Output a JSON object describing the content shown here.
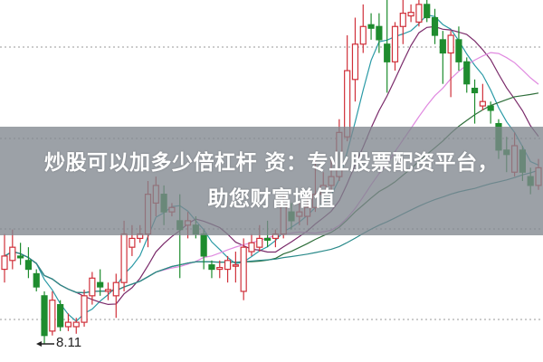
{
  "banner": {
    "line1": "炒股可以加多少倍杠杆 资：专业股票配资平台，",
    "line2": "助您财富增值"
  },
  "chart_data": {
    "type": "candlestick",
    "title": "",
    "xlabel": "",
    "ylabel": "",
    "ylim": [
      7.9,
      12.0
    ],
    "grid": "horizontal dotted",
    "annotations": [
      {
        "text": "8.11",
        "target": "lowest low"
      }
    ],
    "colors": {
      "up": "#d0303a",
      "down": "#1e8c2e",
      "ma_lines": [
        "#2a9aa6",
        "#7a2a6a",
        "#e08ae0",
        "#2e6e3a",
        "#2a8a8a"
      ]
    },
    "candles": [
      [
        8.95,
        9.1,
        9.35,
        8.8
      ],
      [
        9.05,
        9.2,
        9.4,
        8.95
      ],
      [
        9.1,
        9.08,
        9.25,
        9.0
      ],
      [
        9.05,
        8.95,
        9.2,
        8.85
      ],
      [
        8.9,
        8.75,
        8.95,
        8.7
      ],
      [
        8.65,
        8.2,
        8.7,
        8.11
      ],
      [
        8.25,
        8.6,
        8.7,
        8.2
      ],
      [
        8.55,
        8.3,
        8.6,
        8.25
      ],
      [
        8.3,
        8.35,
        8.45,
        8.25
      ],
      [
        8.3,
        8.35,
        8.4,
        8.22
      ],
      [
        8.35,
        8.65,
        8.72,
        8.3
      ],
      [
        8.65,
        8.85,
        8.92,
        8.55
      ],
      [
        8.8,
        8.75,
        8.95,
        8.65
      ],
      [
        8.7,
        8.72,
        8.8,
        8.6
      ],
      [
        8.65,
        8.8,
        8.9,
        8.4
      ],
      [
        8.8,
        9.35,
        9.5,
        8.7
      ],
      [
        9.2,
        9.3,
        9.45,
        9.1
      ],
      [
        9.3,
        9.35,
        9.45,
        9.25
      ],
      [
        9.35,
        9.8,
        9.95,
        9.2
      ],
      [
        9.7,
        9.9,
        10.0,
        9.55
      ],
      [
        9.8,
        9.6,
        9.9,
        9.45
      ],
      [
        9.6,
        9.65,
        9.7,
        9.55
      ],
      [
        9.5,
        9.4,
        9.8,
        8.85
      ],
      [
        9.45,
        9.5,
        9.6,
        9.3
      ],
      [
        9.45,
        9.35,
        9.55,
        9.3
      ],
      [
        9.35,
        9.1,
        9.4,
        8.95
      ],
      [
        9.0,
        8.95,
        9.05,
        8.85
      ],
      [
        8.95,
        8.97,
        9.05,
        8.85
      ],
      [
        8.95,
        9.05,
        9.1,
        8.8
      ],
      [
        9.0,
        9.0,
        9.15,
        8.8
      ],
      [
        8.7,
        9.2,
        9.3,
        8.6
      ],
      [
        9.15,
        9.25,
        9.35,
        9.1
      ],
      [
        9.2,
        9.3,
        9.45,
        9.15
      ],
      [
        9.3,
        9.28,
        9.5,
        9.2
      ],
      [
        9.3,
        9.35,
        9.4,
        9.2
      ],
      [
        9.35,
        9.7,
        9.8,
        9.3
      ],
      [
        9.6,
        9.5,
        9.7,
        9.4
      ],
      [
        9.55,
        9.6,
        9.7,
        9.45
      ],
      [
        9.55,
        9.65,
        9.75,
        9.45
      ],
      [
        9.65,
        9.8,
        10.2,
        9.6
      ],
      [
        9.8,
        9.9,
        10.05,
        9.7
      ],
      [
        9.9,
        10.0,
        10.2,
        9.85
      ],
      [
        10.0,
        10.5,
        10.65,
        9.95
      ],
      [
        10.45,
        11.2,
        11.6,
        10.4
      ],
      [
        11.1,
        11.5,
        11.8,
        10.85
      ],
      [
        11.5,
        11.7,
        11.95,
        11.4
      ],
      [
        11.72,
        11.68,
        11.85,
        11.55
      ],
      [
        11.7,
        11.55,
        11.85,
        11.4
      ],
      [
        11.5,
        11.3,
        12.0,
        10.95
      ],
      [
        11.3,
        11.7,
        11.75,
        11.2
      ],
      [
        11.7,
        11.85,
        12.0,
        11.5
      ],
      [
        11.82,
        11.86,
        11.95,
        11.75
      ],
      [
        11.75,
        11.95,
        12.0,
        11.7
      ],
      [
        11.95,
        11.8,
        12.0,
        11.75
      ],
      [
        11.8,
        11.6,
        11.9,
        11.5
      ],
      [
        11.55,
        11.4,
        11.65,
        11.05
      ],
      [
        11.4,
        11.6,
        11.65,
        10.9
      ],
      [
        11.55,
        11.3,
        11.7,
        11.2
      ],
      [
        11.3,
        11.05,
        11.35,
        10.95
      ],
      [
        11.0,
        10.95,
        11.1,
        10.6
      ],
      [
        10.8,
        10.85,
        11.05,
        10.75
      ],
      [
        10.8,
        10.75,
        10.85,
        10.6
      ],
      [
        10.6,
        10.3,
        10.65,
        10.2
      ],
      [
        10.3,
        10.25,
        10.45,
        10.05
      ],
      [
        10.05,
        10.35,
        10.5,
        10.0
      ],
      [
        10.3,
        10.05,
        10.35,
        9.95
      ],
      [
        10.0,
        9.9,
        10.1,
        9.8
      ],
      [
        9.9,
        10.1,
        10.2,
        9.85
      ]
    ]
  }
}
